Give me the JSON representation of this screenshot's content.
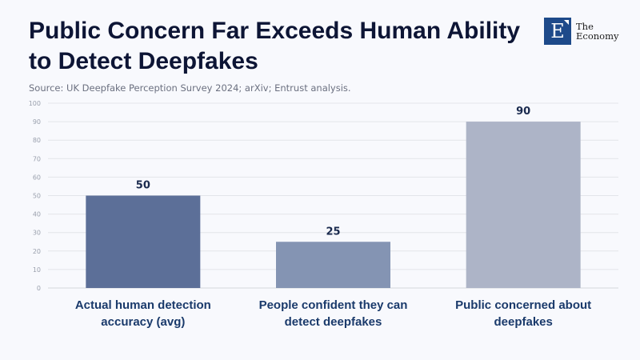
{
  "header": {
    "title": "Public Concern Far Exceeds Human Ability to Detect Deepfakes",
    "source": "Source: UK Deepfake Perception Survey 2024; arXiv; Entrust analysis."
  },
  "logo": {
    "letter": "E",
    "line1": "The",
    "line2": "Economy",
    "color": "#1e4a8a"
  },
  "chart_data": {
    "type": "bar",
    "title": "Public Concern Far Exceeds Human Ability to Detect Deepfakes",
    "xlabel": "",
    "ylabel": "",
    "categories": [
      "Actual human detection accuracy (avg)",
      "People confident they can detect deepfakes",
      "Public concerned about deepfakes"
    ],
    "category_lines": [
      [
        "Actual human detection",
        "accuracy (avg)"
      ],
      [
        "People confident they can",
        "detect deepfakes"
      ],
      [
        "Public concerned about",
        "deepfakes"
      ]
    ],
    "values": [
      50,
      25,
      90
    ],
    "colors": [
      "#5c6f98",
      "#8494b3",
      "#adb4c7"
    ],
    "ylim": [
      0,
      100
    ],
    "yticks": [
      0,
      10,
      20,
      30,
      40,
      50,
      60,
      70,
      80,
      90,
      100
    ],
    "grid": true,
    "legend": "none",
    "data_labels": [
      "50",
      "25",
      "90"
    ]
  }
}
